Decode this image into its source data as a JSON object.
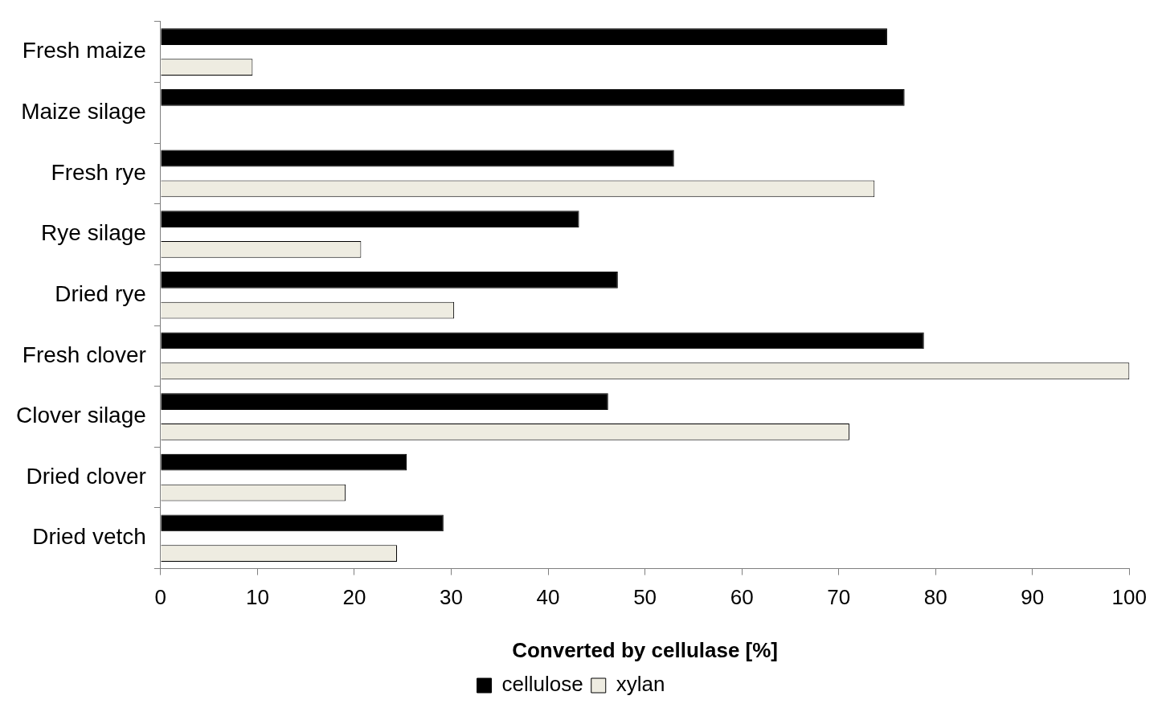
{
  "chart_data": {
    "type": "bar",
    "orientation": "horizontal",
    "xlabel": "Converted by cellulase [%]",
    "categories": [
      "Fresh maize",
      "Maize silage",
      "Fresh rye",
      "Rye silage",
      "Dried rye",
      "Fresh clover",
      "Clover silage",
      "Dried clover",
      "Dried vetch"
    ],
    "series": [
      {
        "name": "cellulose",
        "color": "#000000",
        "values": [
          75,
          76.8,
          53,
          43.2,
          47.2,
          78.8,
          46.2,
          25.4,
          29.2
        ]
      },
      {
        "name": "xylan",
        "color": "#eeece1",
        "values": [
          9.5,
          null,
          73.7,
          20.7,
          30.3,
          100,
          71.1,
          19.1,
          24.4
        ]
      }
    ],
    "xlim": [
      0,
      100
    ],
    "xticks": [
      0,
      10,
      20,
      30,
      40,
      50,
      60,
      70,
      80,
      90,
      100
    ],
    "grid": false,
    "legend": "bottom"
  }
}
